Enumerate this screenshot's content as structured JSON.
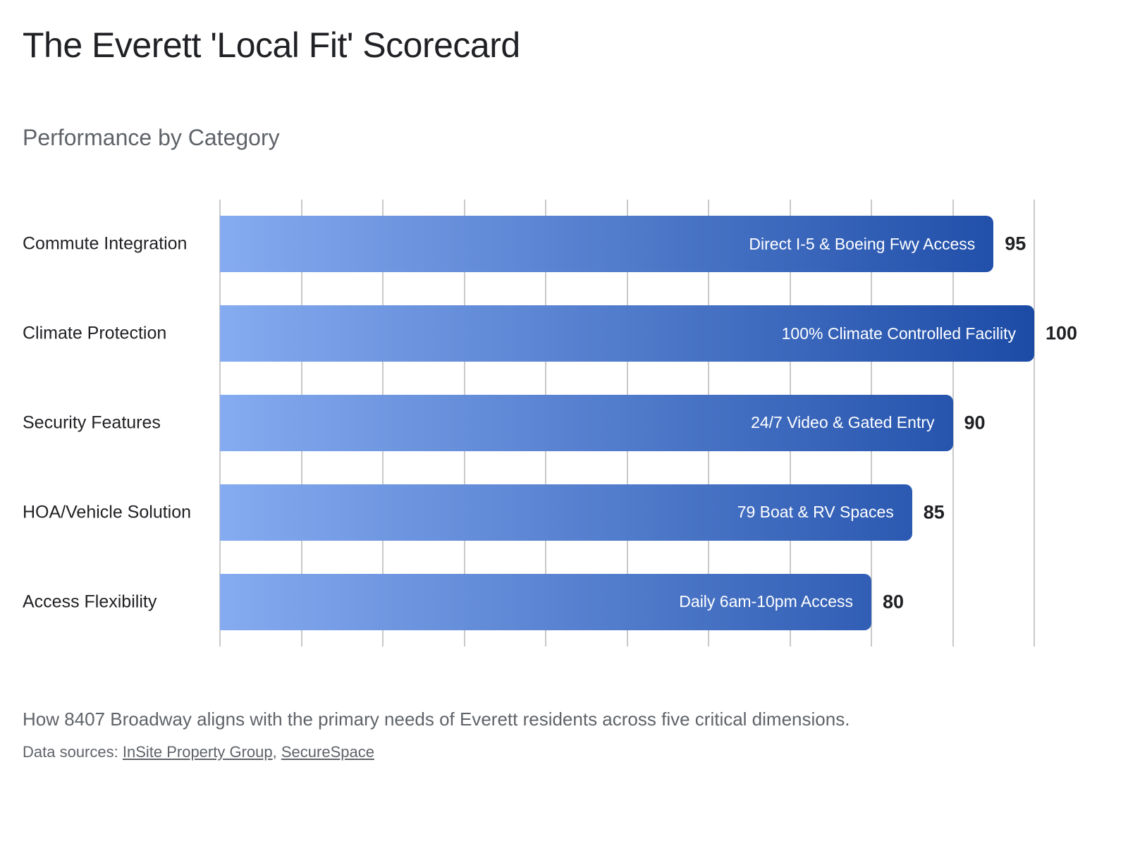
{
  "header": {
    "title": "The Everett 'Local Fit' Scorecard",
    "subtitle": "Performance by Category"
  },
  "footer": {
    "description": "How 8407 Broadway aligns with the primary needs of Everett residents across five critical dimensions.",
    "sources_prefix": "Data sources: ",
    "sources_separator": ", ",
    "sources": [
      "InSite Property Group",
      "SecureSpace"
    ]
  },
  "colors": {
    "bar_gradient_start": "#85abf0",
    "bar_gradient_end": "#1c4ba6",
    "grid_line": "#c9c9c9",
    "title_text": "#202124",
    "muted_text": "#5f6368",
    "bar_label_text": "#ffffff",
    "value_text": "#202124"
  },
  "chart_data": {
    "type": "bar",
    "orientation": "horizontal",
    "title": "Performance by Category",
    "categories": [
      "Commute Integration",
      "Climate Protection",
      "Security Features",
      "HOA/Vehicle Solution",
      "Access Flexibility"
    ],
    "values": [
      95,
      100,
      90,
      85,
      80
    ],
    "bar_labels": [
      "Direct I-5 & Boeing Fwy Access",
      "100% Climate Controlled Facility",
      "24/7 Video & Gated Entry",
      "79 Boat & RV Spaces",
      "Daily 6am-10pm Access"
    ],
    "xlim": [
      0,
      100
    ],
    "gridlines_every": 10,
    "grid": true,
    "legend": false,
    "axis_tick_labels_shown": false,
    "value_labels_shown": true
  }
}
